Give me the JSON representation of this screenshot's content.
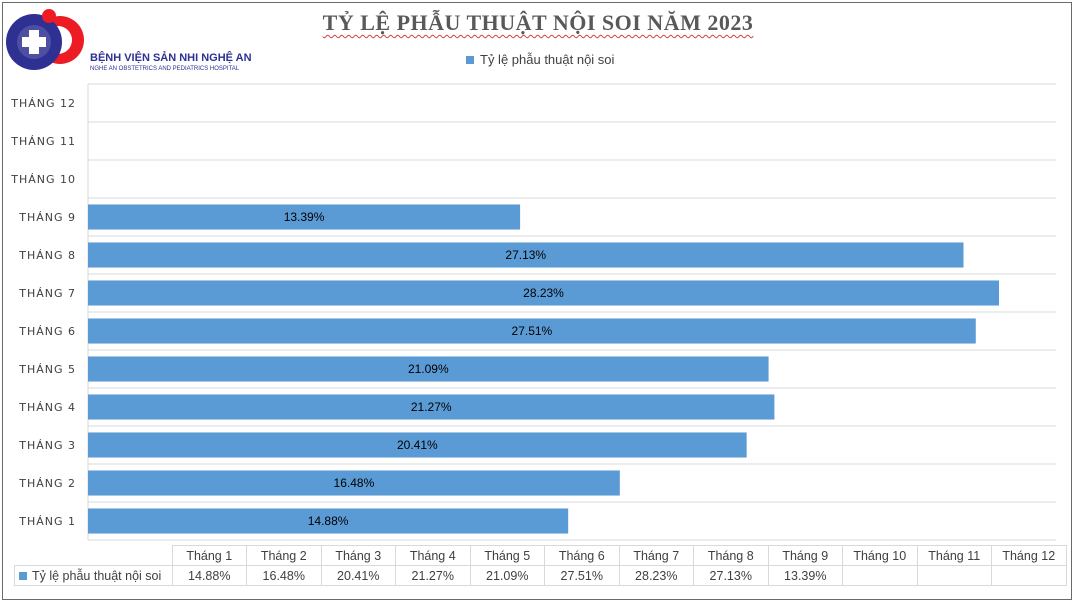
{
  "colors": {
    "bar": "#5b9bd5",
    "grid": "#d9d9d9",
    "logo_blue": "#2e3192",
    "logo_red": "#ed1c24"
  },
  "logo": {
    "name": "BỆNH VIỆN SẢN NHI NGHỆ AN",
    "subtitle": "NGHE AN OBSTETRICS AND PEDIATRICS HOSPITAL"
  },
  "chart_data": {
    "type": "bar",
    "orientation": "horizontal",
    "title": "TỶ LỆ PHẪU THUẬT NỘI SOI NĂM 2023",
    "legend_position": "top",
    "grid": true,
    "categories": [
      "THÁNG 1",
      "THÁNG 2",
      "THÁNG 3",
      "THÁNG 4",
      "THÁNG 5",
      "THÁNG 6",
      "THÁNG 7",
      "THÁNG 8",
      "THÁNG 9",
      "THÁNG 10",
      "THÁNG 11",
      "THÁNG 12"
    ],
    "series": [
      {
        "name": "Tỷ lệ phẫu thuật nội soi",
        "values": [
          14.88,
          16.48,
          20.41,
          21.27,
          21.09,
          27.51,
          28.23,
          27.13,
          13.39,
          null,
          null,
          null
        ],
        "labels": [
          "14.88%",
          "16.48%",
          "20.41%",
          "21.27%",
          "21.09%",
          "27.51%",
          "28.23%",
          "27.13%",
          "13.39%",
          "",
          "",
          ""
        ]
      }
    ],
    "xlim": [
      0,
      28.23
    ],
    "data_table": {
      "columns": [
        "Tháng 1",
        "Tháng 2",
        "Tháng 3",
        "Tháng 4",
        "Tháng 5",
        "Tháng 6",
        "Tháng 7",
        "Tháng 8",
        "Tháng 9",
        "Tháng 10",
        "Tháng 11",
        "Tháng 12"
      ],
      "row_label": "Tỷ lệ phẫu thuật nội soi",
      "values": [
        "14.88%",
        "16.48%",
        "20.41%",
        "21.27%",
        "21.09%",
        "27.51%",
        "28.23%",
        "27.13%",
        "13.39%",
        "",
        "",
        ""
      ]
    }
  }
}
